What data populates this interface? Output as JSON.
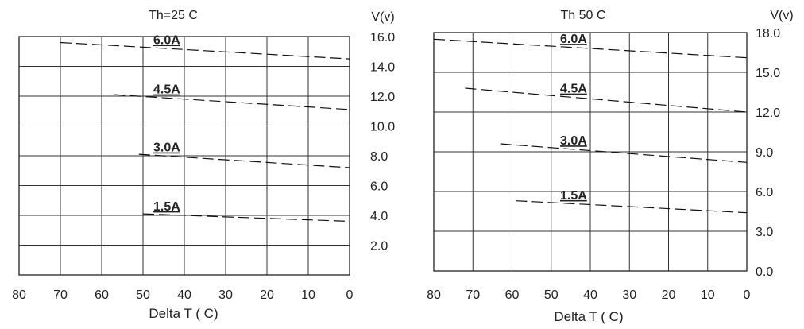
{
  "chart_data": [
    {
      "type": "line",
      "title": "Th=25 C",
      "xlabel": "Delta T ( C)",
      "ylabel": "V(v)",
      "x_ticks": [
        "80",
        "70",
        "60",
        "50",
        "40",
        "30",
        "20",
        "10",
        "0"
      ],
      "y_ticks": [
        "2.0",
        "4.0",
        "6.0",
        "8.0",
        "10.0",
        "12.0",
        "14.0",
        "16.0"
      ],
      "xlim": [
        80,
        0
      ],
      "ylim": [
        0,
        16
      ],
      "grid": true,
      "series": [
        {
          "name": "6.0A",
          "x": [
            70,
            0
          ],
          "y": [
            15.6,
            14.5
          ]
        },
        {
          "name": "4.5A",
          "x": [
            57,
            0
          ],
          "y": [
            12.1,
            11.1
          ]
        },
        {
          "name": "3.0A",
          "x": [
            51,
            0
          ],
          "y": [
            8.1,
            7.2
          ]
        },
        {
          "name": "1.5A",
          "x": [
            50,
            0
          ],
          "y": [
            4.1,
            3.6
          ]
        }
      ]
    },
    {
      "type": "line",
      "title": "Th  50 C",
      "xlabel": "Delta T ( C)",
      "ylabel": "V(v)",
      "x_ticks": [
        "80",
        "70",
        "60",
        "50",
        "40",
        "30",
        "20",
        "10",
        "0"
      ],
      "y_ticks": [
        "0.0",
        "3.0",
        "6.0",
        "9.0",
        "12.0",
        "15.0",
        "18.0"
      ],
      "xlim": [
        80,
        0
      ],
      "ylim": [
        0,
        18
      ],
      "grid": true,
      "series": [
        {
          "name": "6.0A",
          "x": [
            80,
            0
          ],
          "y": [
            17.5,
            16.1
          ]
        },
        {
          "name": "4.5A",
          "x": [
            72,
            0
          ],
          "y": [
            13.8,
            12.0
          ]
        },
        {
          "name": "3.0A",
          "x": [
            63,
            0
          ],
          "y": [
            9.6,
            8.2
          ]
        },
        {
          "name": "1.5A",
          "x": [
            59,
            0
          ],
          "y": [
            5.3,
            4.4
          ]
        }
      ]
    }
  ]
}
